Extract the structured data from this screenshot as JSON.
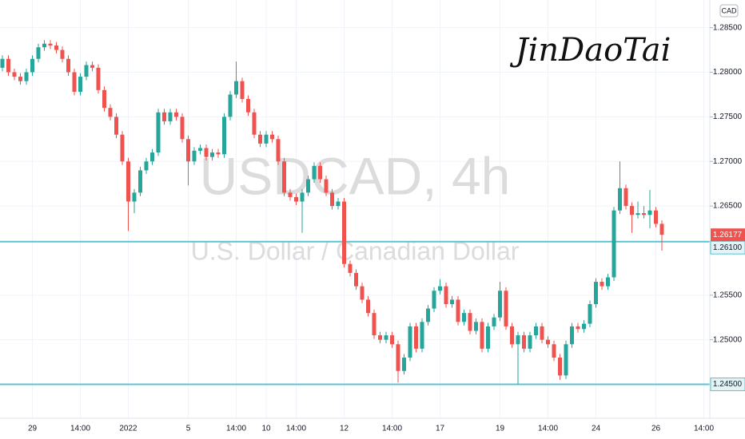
{
  "chart_data": {
    "type": "candlestick",
    "title": "USDCAD, 4h",
    "subtitle": "U.S. Dollar / Canadian Dollar",
    "annotation": "JinDaoTai",
    "currency": "CAD",
    "up_color": "#26a69a",
    "down_color": "#ef5350",
    "level_color": "#5cc3d0",
    "grid": true,
    "ylim": [
      1.2412,
      1.2881
    ],
    "yticks": [
      {
        "value": 1.285,
        "label": "1.28500"
      },
      {
        "value": 1.28,
        "label": "1.28000"
      },
      {
        "value": 1.275,
        "label": "1.27500"
      },
      {
        "value": 1.27,
        "label": "1.27000"
      },
      {
        "value": 1.265,
        "label": "1.26500"
      },
      {
        "value": 1.255,
        "label": "1.25500"
      },
      {
        "value": 1.25,
        "label": "1.25000"
      }
    ],
    "levels": [
      {
        "value": 1.261,
        "label": "1.26100"
      },
      {
        "value": 1.245,
        "label": "1.24500"
      }
    ],
    "last_price": 1.26177,
    "categories": [
      null,
      null,
      null,
      null,
      null,
      "29",
      null,
      null,
      null,
      null,
      null,
      null,
      null,
      "14:00",
      null,
      null,
      null,
      null,
      null,
      null,
      null,
      "2022",
      null,
      null,
      null,
      null,
      null,
      null,
      null,
      null,
      null,
      "5",
      null,
      null,
      null,
      null,
      null,
      null,
      null,
      "14:00",
      null,
      null,
      null,
      null,
      "10",
      null,
      null,
      null,
      null,
      "14:00",
      null,
      null,
      null,
      null,
      null,
      null,
      null,
      "12",
      null,
      null,
      null,
      null,
      null,
      null,
      null,
      "14:00",
      null,
      null,
      null,
      null,
      null,
      null,
      null,
      "17",
      null,
      null,
      null,
      null,
      null,
      null,
      null,
      null,
      null,
      "19",
      null,
      null,
      null,
      null,
      null,
      null,
      null,
      "14:00",
      null,
      null,
      null,
      null,
      null,
      null,
      null,
      "24",
      null,
      null,
      null,
      null,
      null,
      null,
      null,
      null,
      null,
      "26",
      null,
      null,
      null,
      null,
      null,
      null,
      null,
      "14:00"
    ],
    "candles": [
      [
        1.2805,
        1.2819,
        1.2801,
        1.2815
      ],
      [
        1.2815,
        1.2819,
        1.2796,
        1.28
      ],
      [
        1.28,
        1.2804,
        1.2791,
        1.2795
      ],
      [
        1.2795,
        1.2799,
        1.2786,
        1.279
      ],
      [
        1.279,
        1.2804,
        1.2786,
        1.28
      ],
      [
        1.28,
        1.2819,
        1.2796,
        1.2815
      ],
      [
        1.2815,
        1.2832,
        1.2811,
        1.2828
      ],
      [
        1.2828,
        1.2836,
        1.2824,
        1.2832
      ],
      [
        1.2832,
        1.2836,
        1.2826,
        1.283
      ],
      [
        1.283,
        1.2834,
        1.2821,
        1.2825
      ],
      [
        1.2825,
        1.2829,
        1.2811,
        1.2815
      ],
      [
        1.2815,
        1.2819,
        1.2796,
        1.28
      ],
      [
        1.28,
        1.2804,
        1.2774,
        1.2778
      ],
      [
        1.2778,
        1.2799,
        1.2774,
        1.2795
      ],
      [
        1.2795,
        1.2812,
        1.2791,
        1.2808
      ],
      [
        1.2808,
        1.2812,
        1.2801,
        1.2805
      ],
      [
        1.2805,
        1.2809,
        1.2776,
        1.278
      ],
      [
        1.278,
        1.2784,
        1.2756,
        1.276
      ],
      [
        1.276,
        1.2764,
        1.2746,
        1.275
      ],
      [
        1.275,
        1.2754,
        1.2726,
        1.273
      ],
      [
        1.273,
        1.2734,
        1.2696,
        1.27
      ],
      [
        1.27,
        1.2704,
        1.2622,
        1.2655
      ],
      [
        1.2655,
        1.2669,
        1.2642,
        1.2665
      ],
      [
        1.2665,
        1.2694,
        1.2661,
        1.269
      ],
      [
        1.269,
        1.2704,
        1.2686,
        1.27
      ],
      [
        1.27,
        1.2714,
        1.2696,
        1.271
      ],
      [
        1.271,
        1.2759,
        1.2706,
        1.2755
      ],
      [
        1.2755,
        1.2759,
        1.2741,
        1.2745
      ],
      [
        1.2745,
        1.2759,
        1.2741,
        1.2755
      ],
      [
        1.2755,
        1.2759,
        1.2746,
        1.275
      ],
      [
        1.275,
        1.2754,
        1.2721,
        1.2725
      ],
      [
        1.2725,
        1.2729,
        1.2673,
        1.27
      ],
      [
        1.27,
        1.2716,
        1.2696,
        1.2712
      ],
      [
        1.2712,
        1.2719,
        1.2708,
        1.2715
      ],
      [
        1.2715,
        1.2719,
        1.2701,
        1.2705
      ],
      [
        1.2705,
        1.2714,
        1.2701,
        1.271
      ],
      [
        1.271,
        1.2714,
        1.2704,
        1.2708
      ],
      [
        1.2708,
        1.2754,
        1.2704,
        1.275
      ],
      [
        1.275,
        1.2779,
        1.2746,
        1.2775
      ],
      [
        1.2775,
        1.2812,
        1.2771,
        1.279
      ],
      [
        1.279,
        1.2794,
        1.2766,
        1.277
      ],
      [
        1.277,
        1.2774,
        1.2751,
        1.2755
      ],
      [
        1.2755,
        1.2759,
        1.2726,
        1.273
      ],
      [
        1.273,
        1.2734,
        1.2716,
        1.272
      ],
      [
        1.272,
        1.2734,
        1.2716,
        1.273
      ],
      [
        1.273,
        1.2734,
        1.2721,
        1.2725
      ],
      [
        1.2725,
        1.2729,
        1.2696,
        1.27
      ],
      [
        1.27,
        1.2704,
        1.2661,
        1.2665
      ],
      [
        1.2665,
        1.2669,
        1.2656,
        1.266
      ],
      [
        1.266,
        1.2664,
        1.2651,
        1.2655
      ],
      [
        1.2655,
        1.2669,
        1.262,
        1.2665
      ],
      [
        1.2665,
        1.2684,
        1.2661,
        1.268
      ],
      [
        1.268,
        1.2699,
        1.2676,
        1.2695
      ],
      [
        1.2695,
        1.2699,
        1.2676,
        1.268
      ],
      [
        1.268,
        1.2684,
        1.2661,
        1.2665
      ],
      [
        1.2665,
        1.2669,
        1.2646,
        1.265
      ],
      [
        1.265,
        1.2659,
        1.2646,
        1.2655
      ],
      [
        1.2655,
        1.2659,
        1.2581,
        1.2585
      ],
      [
        1.2585,
        1.2589,
        1.2571,
        1.2575
      ],
      [
        1.2575,
        1.2579,
        1.2556,
        1.256
      ],
      [
        1.256,
        1.2564,
        1.2541,
        1.2545
      ],
      [
        1.2545,
        1.2549,
        1.2526,
        1.253
      ],
      [
        1.253,
        1.2534,
        1.2501,
        1.2505
      ],
      [
        1.2505,
        1.2509,
        1.2496,
        1.25
      ],
      [
        1.25,
        1.2509,
        1.2496,
        1.2505
      ],
      [
        1.2505,
        1.2509,
        1.2491,
        1.2495
      ],
      [
        1.2495,
        1.2499,
        1.2452,
        1.2465
      ],
      [
        1.2465,
        1.2484,
        1.2461,
        1.248
      ],
      [
        1.248,
        1.2519,
        1.2476,
        1.2515
      ],
      [
        1.2515,
        1.2519,
        1.2486,
        1.249
      ],
      [
        1.249,
        1.2524,
        1.2486,
        1.252
      ],
      [
        1.252,
        1.2539,
        1.2516,
        1.2535
      ],
      [
        1.2535,
        1.2559,
        1.2531,
        1.2555
      ],
      [
        1.2555,
        1.2568,
        1.2551,
        1.256
      ],
      [
        1.256,
        1.2564,
        1.2536,
        1.254
      ],
      [
        1.254,
        1.2549,
        1.2536,
        1.2545
      ],
      [
        1.2545,
        1.2549,
        1.2516,
        1.252
      ],
      [
        1.252,
        1.2534,
        1.2516,
        1.253
      ],
      [
        1.253,
        1.2534,
        1.2506,
        1.251
      ],
      [
        1.251,
        1.2524,
        1.2506,
        1.252
      ],
      [
        1.252,
        1.2524,
        1.2486,
        1.249
      ],
      [
        1.249,
        1.2519,
        1.2486,
        1.2515
      ],
      [
        1.2515,
        1.2529,
        1.2511,
        1.2525
      ],
      [
        1.2525,
        1.2565,
        1.2521,
        1.2555
      ],
      [
        1.2555,
        1.2559,
        1.2511,
        1.2515
      ],
      [
        1.2515,
        1.2519,
        1.2491,
        1.2495
      ],
      [
        1.2495,
        1.2509,
        1.245,
        1.2505
      ],
      [
        1.2505,
        1.2509,
        1.2486,
        1.249
      ],
      [
        1.249,
        1.2509,
        1.2486,
        1.2505
      ],
      [
        1.2505,
        1.2519,
        1.2501,
        1.2515
      ],
      [
        1.2515,
        1.2519,
        1.2496,
        1.25
      ],
      [
        1.25,
        1.2504,
        1.2491,
        1.2495
      ],
      [
        1.2495,
        1.2499,
        1.2476,
        1.248
      ],
      [
        1.248,
        1.2484,
        1.2455,
        1.246
      ],
      [
        1.246,
        1.2499,
        1.2456,
        1.2495
      ],
      [
        1.2495,
        1.2519,
        1.2491,
        1.2515
      ],
      [
        1.2515,
        1.2519,
        1.2508,
        1.2512
      ],
      [
        1.2512,
        1.2522,
        1.2508,
        1.2518
      ],
      [
        1.2518,
        1.2544,
        1.2514,
        1.254
      ],
      [
        1.254,
        1.2569,
        1.2536,
        1.2565
      ],
      [
        1.2565,
        1.2569,
        1.2556,
        1.256
      ],
      [
        1.256,
        1.2574,
        1.2556,
        1.257
      ],
      [
        1.257,
        1.2649,
        1.2566,
        1.2645
      ],
      [
        1.2645,
        1.27,
        1.2641,
        1.267
      ],
      [
        1.267,
        1.2674,
        1.2646,
        1.265
      ],
      [
        1.265,
        1.2654,
        1.262,
        1.264
      ],
      [
        1.264,
        1.2655,
        1.2636,
        1.2642
      ],
      [
        1.2642,
        1.265,
        1.2636,
        1.264
      ],
      [
        1.264,
        1.2668,
        1.2625,
        1.2645
      ],
      [
        1.2645,
        1.2649,
        1.2626,
        1.263
      ],
      [
        1.263,
        1.2634,
        1.26,
        1.26177
      ],
      null,
      null,
      null,
      null,
      null,
      null,
      null
    ]
  }
}
